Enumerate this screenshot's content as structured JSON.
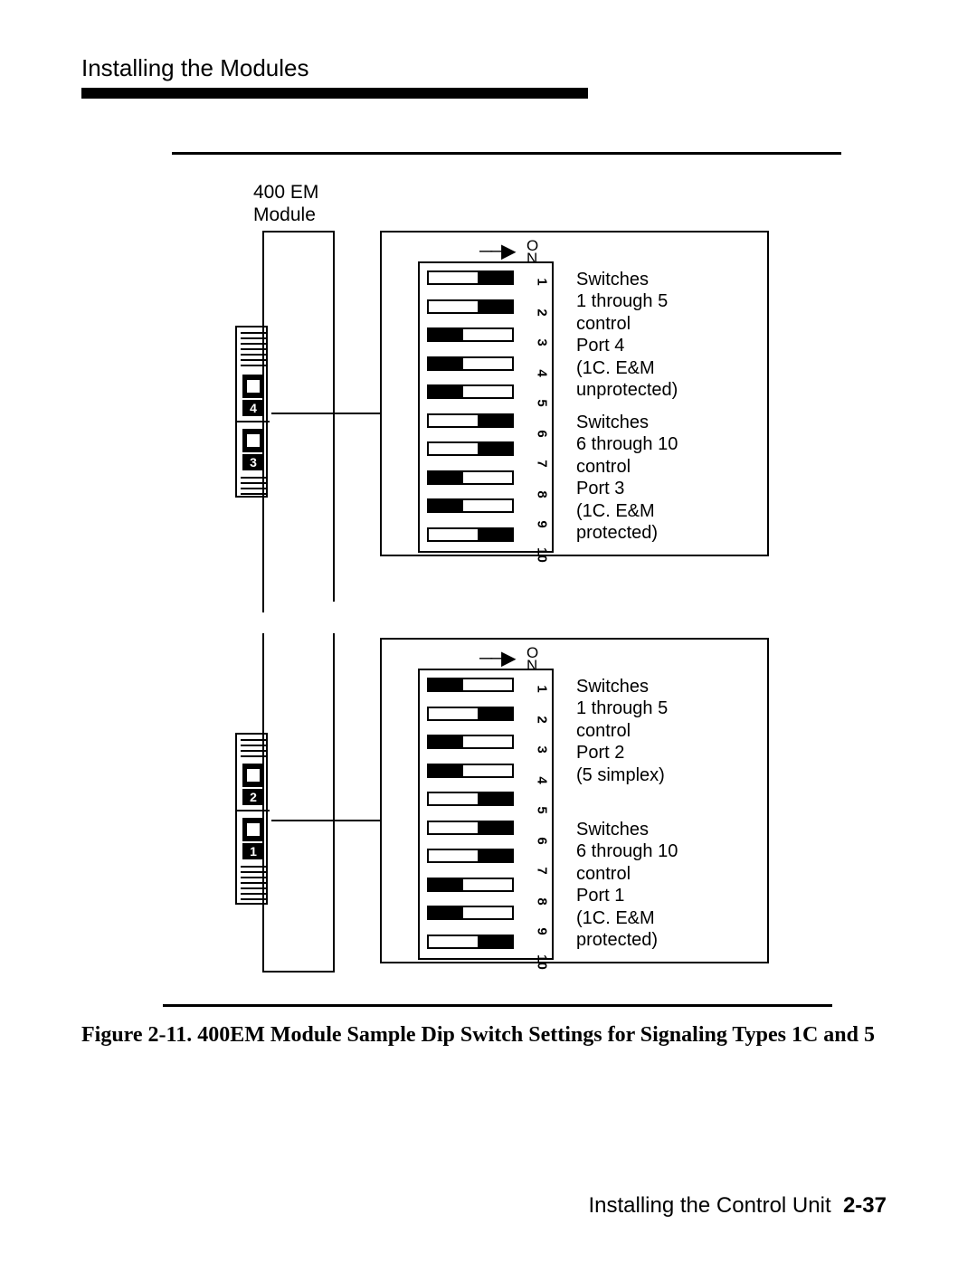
{
  "header": {
    "title": "Installing the Modules"
  },
  "module_label": {
    "line1": "400 EM",
    "line2": "Module"
  },
  "dip_blocks": {
    "upper": {
      "on_label": "ON",
      "numbers": [
        "1",
        "2",
        "3",
        "4",
        "5",
        "6",
        "7",
        "8",
        "9",
        "10"
      ],
      "switches_on": [
        true,
        true,
        false,
        false,
        false,
        true,
        true,
        false,
        false,
        true
      ],
      "anno_top": "Switches\n1 through 5\ncontrol\nPort 4\n(1C. E&M\nunprotected)",
      "anno_bot": "Switches\n6 through 10\ncontrol\nPort 3\n(1C. E&M\nprotected)"
    },
    "lower": {
      "on_label": "ON",
      "numbers": [
        "1",
        "2",
        "3",
        "4",
        "5",
        "6",
        "7",
        "8",
        "9",
        "10"
      ],
      "switches_on": [
        false,
        true,
        false,
        false,
        true,
        true,
        true,
        false,
        false,
        true
      ],
      "anno_top": "Switches\n1 through 5\ncontrol\nPort 2\n(5 simplex)",
      "anno_bot": "Switches\n6 through 10\ncontrol\nPort 1\n(1C. E&M\nprotected)"
    }
  },
  "ports": {
    "upper_numbers": [
      "4",
      "3"
    ],
    "lower_numbers": [
      "2",
      "1"
    ]
  },
  "caption": "Figure 2-11. 400EM Module Sample Dip Switch Settings for Signaling Types 1C and 5",
  "footer": {
    "text": "Installing the Control Unit",
    "page": "2-37"
  },
  "colors": {
    "ink": "#000000",
    "paper": "#ffffff"
  }
}
